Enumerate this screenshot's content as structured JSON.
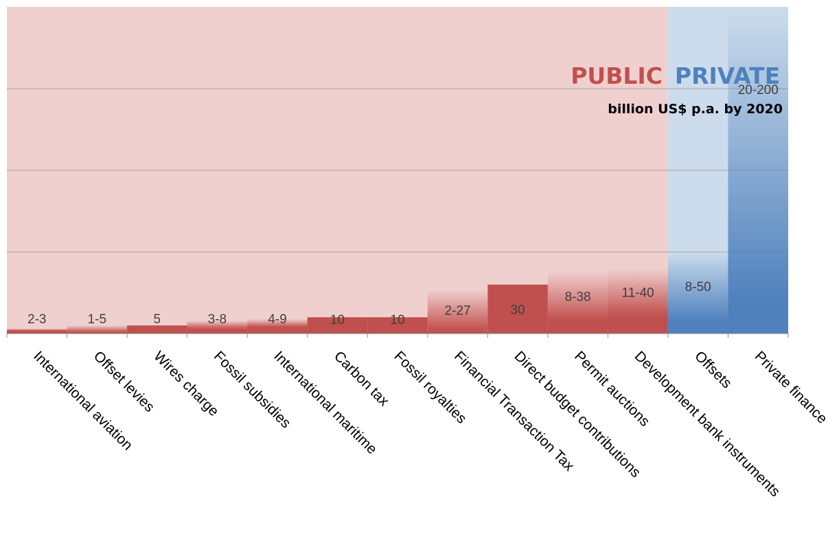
{
  "chart_data": {
    "type": "bar",
    "subtitle": "billion US$ p.a. by 2020",
    "groups": [
      {
        "name": "PUBLIC",
        "color": "#c0504d",
        "background": "#f0d0cf",
        "first": 0,
        "last": 10
      },
      {
        "name": "PRIVATE",
        "color": "#4f81bd",
        "background": "#ccdcec",
        "first": 11,
        "last": 12
      }
    ],
    "categories": [
      "International aviation",
      "Offset levies",
      "Wires charge",
      "Fossil subsidies",
      "International maritime",
      "Carbon tax",
      "Fossil royalties",
      "Financial Transaction Tax",
      "Direct budget contributions",
      "Permit auctions",
      "Development bank instruments",
      "Offsets",
      "Private finance"
    ],
    "labels": [
      "2-3",
      "1-5",
      "5",
      "3-8",
      "4-9",
      "10",
      "10",
      "2-27",
      "30",
      "8-38",
      "11-40",
      "8-50",
      "20-200"
    ],
    "low": [
      2,
      1,
      5,
      3,
      4,
      10,
      10,
      2,
      30,
      8,
      11,
      8,
      20
    ],
    "high": [
      3,
      5,
      5,
      8,
      9,
      10,
      10,
      27,
      30,
      38,
      40,
      50,
      200
    ],
    "group_of": [
      "PUBLIC",
      "PUBLIC",
      "PUBLIC",
      "PUBLIC",
      "PUBLIC",
      "PUBLIC",
      "PUBLIC",
      "PUBLIC",
      "PUBLIC",
      "PUBLIC",
      "PUBLIC",
      "PRIVATE",
      "PRIVATE"
    ],
    "ylim": [
      0,
      200
    ],
    "gridlines": [
      50,
      100,
      150
    ],
    "grid": true,
    "legend": "none"
  }
}
